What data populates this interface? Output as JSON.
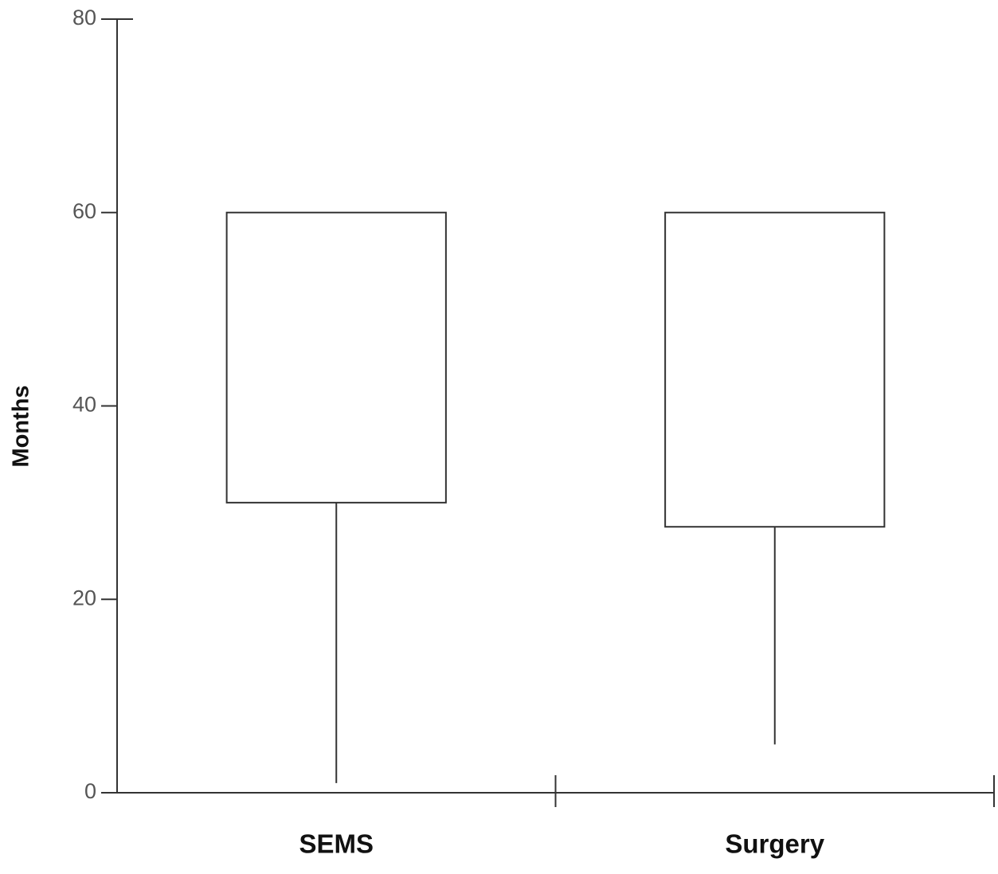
{
  "chart_data": {
    "type": "box",
    "ylabel": "Months",
    "categories": [
      "SEMS",
      "Surgery"
    ],
    "whisker_low": [
      1,
      5
    ],
    "q1": [
      30,
      27.5
    ],
    "q3": [
      60,
      60
    ],
    "ylim": [
      0,
      80
    ],
    "yticks": [
      0,
      20,
      40,
      60,
      80
    ]
  }
}
